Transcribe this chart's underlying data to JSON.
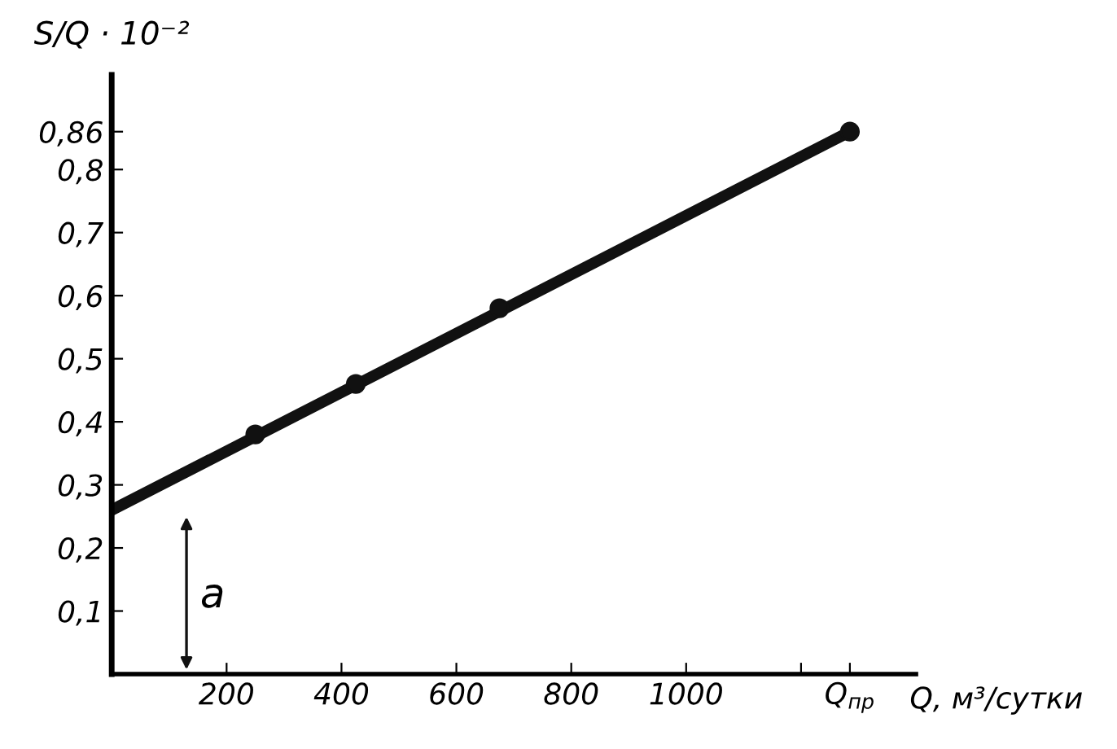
{
  "chart_data": {
    "type": "line",
    "ylabel": "S/Q · 10⁻²",
    "xlabel": "Q, м³/сутки",
    "series": [
      {
        "color": "#111111",
        "x": [
          0,
          1285
        ],
        "values": [
          0.26,
          0.86
        ],
        "marker": "none"
      },
      {
        "type": "scatter",
        "color": "#111111",
        "x": [
          250,
          425,
          675,
          1285
        ],
        "values": [
          0.38,
          0.46,
          0.58,
          0.86
        ],
        "marker": "circle"
      }
    ],
    "annotations": [
      "a"
    ],
    "xlim": [
      0,
      1400
    ],
    "ylim": [
      0,
      0.95
    ],
    "xticks": [
      200,
      400,
      600,
      800,
      1000,
      {
        "value": 1200,
        "label": null
      },
      {
        "value": 1285,
        "label": "Q$_{пр}$"
      }
    ],
    "yticks": [
      {
        "value": 0.1,
        "label": "0,1"
      },
      {
        "value": 0.2,
        "label": "0,2"
      },
      {
        "value": 0.3,
        "label": "0,3"
      },
      {
        "value": 0.4,
        "label": "0,4"
      },
      {
        "value": 0.5,
        "label": "0,5"
      },
      {
        "value": 0.6,
        "label": "0,6"
      },
      {
        "value": 0.7,
        "label": "0,7"
      },
      {
        "value": 0.8,
        "label": "0,8"
      },
      {
        "value": 0.86,
        "label": "0,86"
      }
    ],
    "grid": false,
    "legend": false
  }
}
